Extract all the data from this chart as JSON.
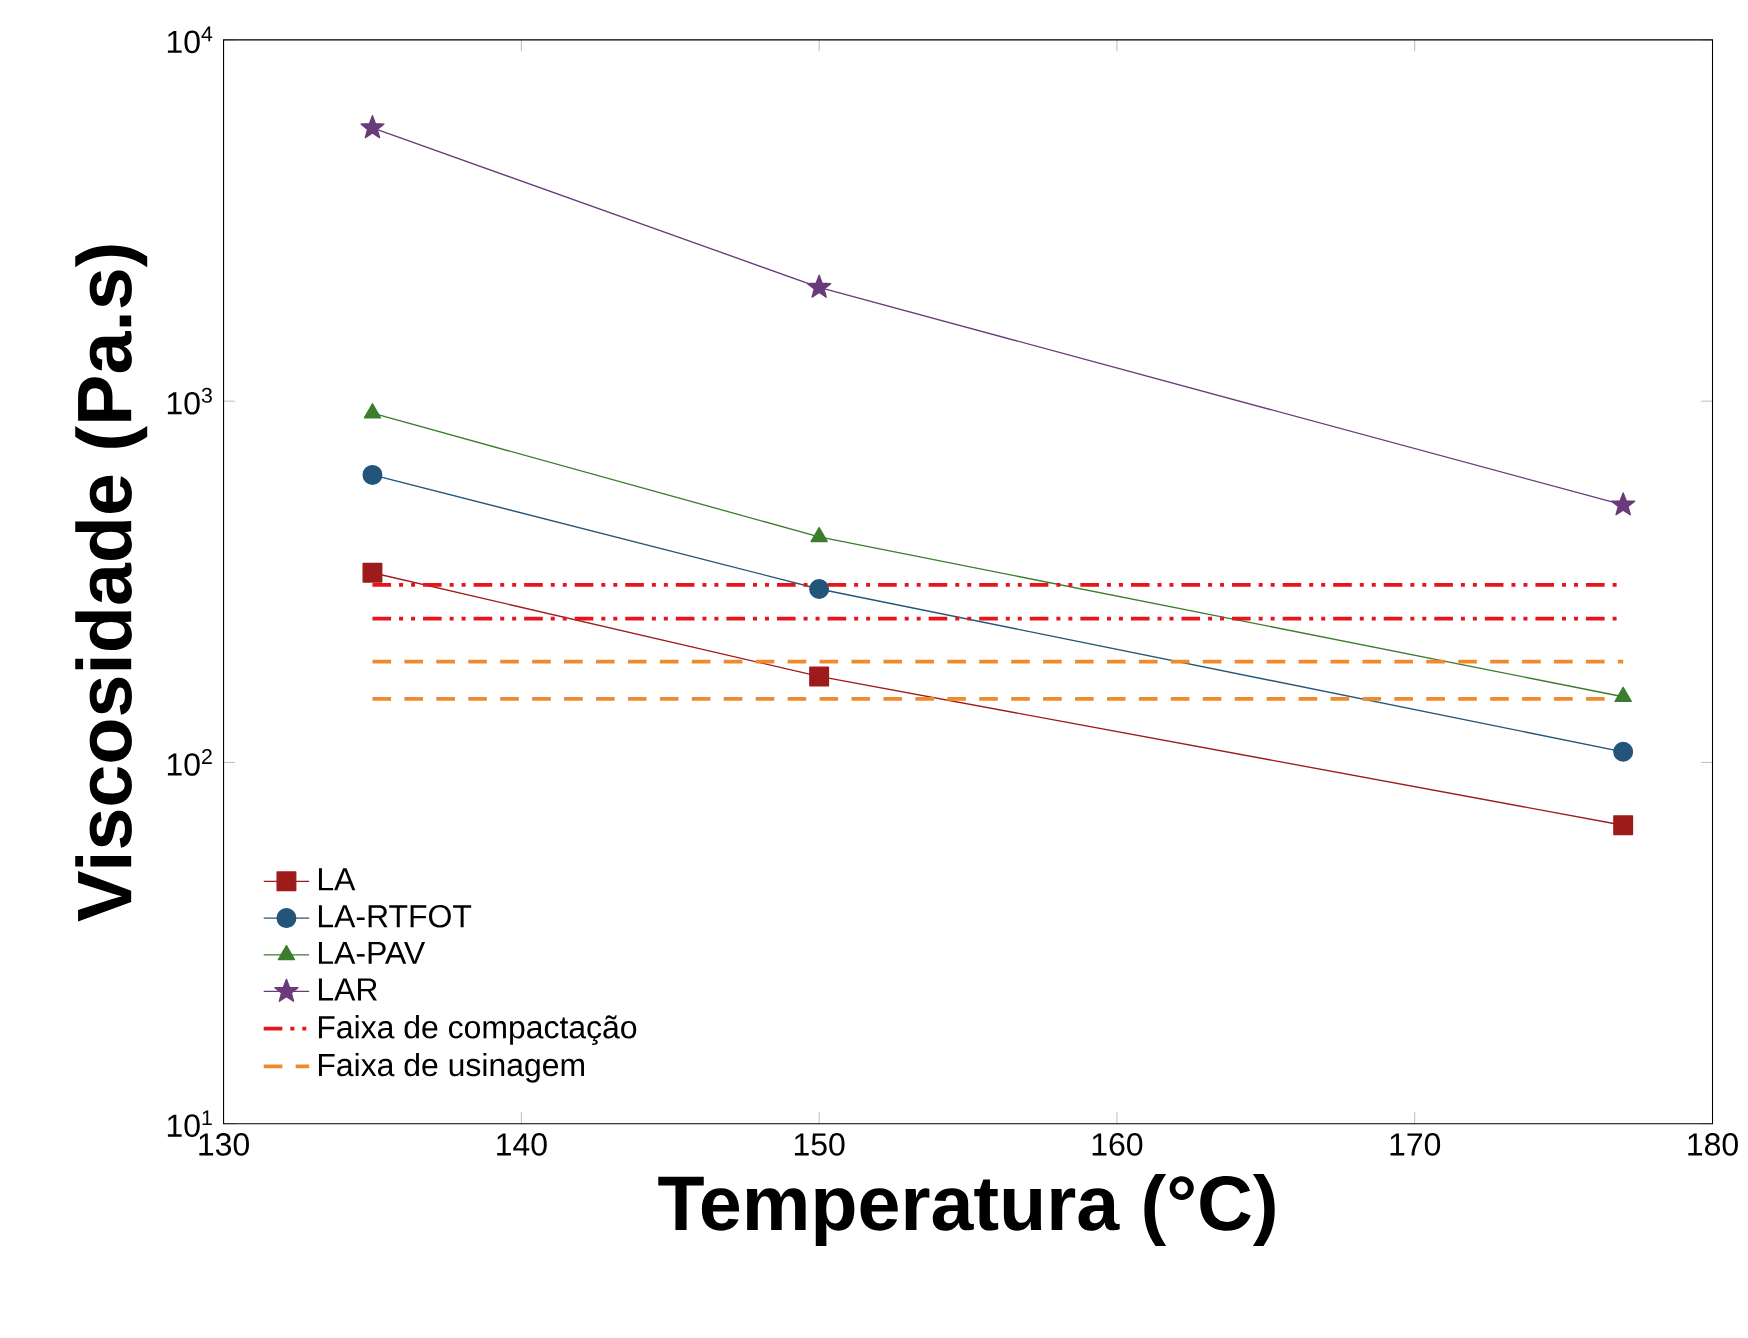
{
  "chart_data": {
    "type": "line",
    "xlabel": "Temperatura (°C)",
    "ylabel": "Viscosidade (Pa.s)",
    "log": "y",
    "xlim": [
      130,
      180
    ],
    "xticks": [
      130,
      140,
      150,
      160,
      170,
      180
    ],
    "ylim": [
      10,
      10000
    ],
    "yticks": [
      {
        "value": 10,
        "label": "10$^{1}$"
      },
      {
        "value": 100,
        "label": "10$^{2}$"
      },
      {
        "value": 1000,
        "label": "10$^{3}$"
      },
      {
        "value": 10000,
        "label": "10$^{4}$"
      }
    ],
    "x": [
      135,
      150,
      177
    ],
    "legend": "bottom left",
    "grid": false,
    "series": [
      {
        "name": "LA",
        "color": "#9e1b1b",
        "marker": "square",
        "line_style": "solid",
        "values": [
          335,
          173,
          67
        ]
      },
      {
        "name": "LA-RTFOT",
        "color": "#23557a",
        "marker": "circle",
        "line_style": "solid",
        "values": [
          625,
          302,
          107
        ]
      },
      {
        "name": "LA-PAV",
        "color": "#3a7d2c",
        "marker": "triangle",
        "line_style": "solid",
        "values": [
          927,
          421,
          152
        ]
      },
      {
        "name": "LAR",
        "color": "#6b3a7a",
        "marker": "star",
        "line_style": "solid",
        "values": [
          5710,
          2065,
          516
        ]
      },
      {
        "name": "Faixa de compactação",
        "color": "#e8141c",
        "marker": "none",
        "line_style": "dashdotdot",
        "values": [
          310,
          310,
          310
        ]
      },
      {
        "color": "#e8141c",
        "marker": "none",
        "line_style": "dashdotdot",
        "values": [
          250,
          250,
          250
        ]
      },
      {
        "name": "Faixa de usinagem",
        "color": "#f08a2c",
        "marker": "none",
        "line_style": "dashed",
        "values": [
          190,
          190,
          190
        ]
      },
      {
        "color": "#f08a2c",
        "marker": "none",
        "line_style": "dashed",
        "values": [
          150,
          150,
          150
        ]
      }
    ]
  }
}
